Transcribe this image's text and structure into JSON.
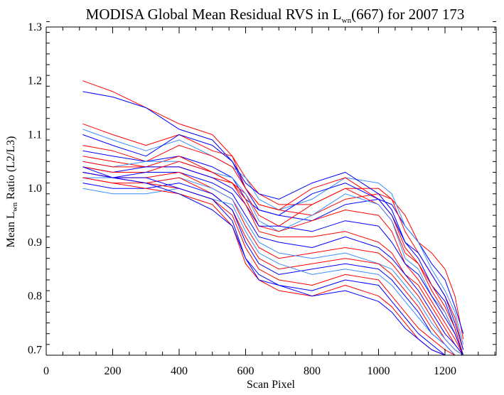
{
  "chart_data": {
    "type": "line",
    "title": {
      "prefix": "MODISA Global Mean Residual RVS in L",
      "subscript": "wn",
      "suffix": "(667) for 2007 173"
    },
    "xlabel": "Scan Pixel",
    "ylabel": {
      "prefix": "Mean L",
      "subscript": "wn",
      "suffix": " Ratio (L2/L3)"
    },
    "xlim": [
      0,
      1354
    ],
    "ylim": [
      0.69,
      1.3
    ],
    "xticks": [
      0,
      200,
      400,
      600,
      800,
      1000,
      1200
    ],
    "yticks": [
      0.7,
      0.8,
      0.9,
      1.0,
      1.1,
      1.2,
      1.3
    ],
    "x_minor_step": 50,
    "y_minor_step": 0.02,
    "grid": false,
    "legend": "none",
    "colors": {
      "red": "#ff0000",
      "blue": "#0000ff",
      "lightblue": "#3a8fff"
    },
    "x": [
      110,
      200,
      300,
      400,
      500,
      560,
      600,
      640,
      700,
      800,
      900,
      1000,
      1040,
      1080,
      1120,
      1160,
      1200,
      1230,
      1255
    ],
    "series": [
      {
        "color": "red",
        "values": [
          1.2,
          1.18,
          1.15,
          1.12,
          1.1,
          1.06,
          1.0,
          0.97,
          0.96,
          0.95,
          0.98,
          0.99,
          0.98,
          0.95,
          0.9,
          0.88,
          0.85,
          0.8,
          0.72
        ]
      },
      {
        "color": "blue",
        "values": [
          1.18,
          1.17,
          1.15,
          1.11,
          1.09,
          1.05,
          1.0,
          0.96,
          0.95,
          0.94,
          0.97,
          0.98,
          0.97,
          0.93,
          0.9,
          0.86,
          0.83,
          0.78,
          0.73
        ]
      },
      {
        "color": "red",
        "values": [
          1.12,
          1.1,
          1.08,
          1.1,
          1.07,
          1.06,
          1.02,
          0.99,
          0.97,
          0.97,
          1.0,
          1.0,
          0.98,
          0.92,
          0.88,
          0.84,
          0.8,
          0.76,
          0.7
        ]
      },
      {
        "color": "lightblue",
        "values": [
          1.11,
          1.09,
          1.07,
          1.09,
          1.06,
          1.04,
          1.02,
          0.98,
          0.96,
          0.98,
          1.02,
          1.01,
          0.99,
          0.93,
          0.9,
          0.85,
          0.81,
          0.77,
          0.71
        ]
      },
      {
        "color": "blue",
        "values": [
          1.1,
          1.08,
          1.06,
          1.1,
          1.08,
          1.05,
          1.01,
          0.99,
          0.98,
          1.01,
          1.03,
          0.99,
          0.96,
          0.9,
          0.87,
          0.82,
          0.79,
          0.74,
          0.69
        ]
      },
      {
        "color": "red",
        "values": [
          1.08,
          1.07,
          1.05,
          1.08,
          1.06,
          1.04,
          1.0,
          0.97,
          0.96,
          1.0,
          1.02,
          0.98,
          0.95,
          0.89,
          0.86,
          0.81,
          0.77,
          0.73,
          0.69
        ]
      },
      {
        "color": "blue",
        "values": [
          1.07,
          1.06,
          1.05,
          1.06,
          1.04,
          1.02,
          0.98,
          0.96,
          0.95,
          0.99,
          1.01,
          0.98,
          0.95,
          0.9,
          0.88,
          0.84,
          0.8,
          0.75,
          0.7
        ]
      },
      {
        "color": "red",
        "values": [
          1.06,
          1.05,
          1.04,
          1.06,
          1.03,
          1.01,
          0.99,
          0.95,
          0.93,
          0.97,
          1.0,
          0.97,
          0.94,
          0.88,
          0.86,
          0.82,
          0.78,
          0.74,
          0.69
        ]
      },
      {
        "color": "lightblue",
        "values": [
          1.05,
          1.04,
          1.05,
          1.05,
          1.03,
          1.02,
          0.99,
          0.94,
          0.92,
          0.95,
          0.99,
          0.97,
          0.94,
          0.87,
          0.85,
          0.8,
          0.77,
          0.73,
          0.69
        ]
      },
      {
        "color": "red",
        "values": [
          1.05,
          1.04,
          1.04,
          1.04,
          1.02,
          1.01,
          0.98,
          0.93,
          0.92,
          0.94,
          0.96,
          0.95,
          0.92,
          0.86,
          0.83,
          0.79,
          0.75,
          0.72,
          0.69
        ]
      },
      {
        "color": "blue",
        "values": [
          1.04,
          1.03,
          1.04,
          1.04,
          1.02,
          1.0,
          0.97,
          0.93,
          0.93,
          0.92,
          0.94,
          0.93,
          0.9,
          0.86,
          0.84,
          0.8,
          0.76,
          0.73,
          0.69
        ]
      },
      {
        "color": "red",
        "values": [
          1.04,
          1.03,
          1.03,
          1.05,
          1.03,
          1.01,
          0.97,
          0.92,
          0.91,
          0.91,
          0.92,
          0.9,
          0.88,
          0.84,
          0.82,
          0.78,
          0.74,
          0.71,
          0.69
        ]
      },
      {
        "color": "blue",
        "values": [
          1.03,
          1.02,
          1.03,
          1.03,
          1.01,
          0.99,
          0.95,
          0.91,
          0.9,
          0.89,
          0.91,
          0.89,
          0.87,
          0.84,
          0.81,
          0.77,
          0.73,
          0.71,
          0.69
        ]
      },
      {
        "color": "red",
        "values": [
          1.03,
          1.02,
          1.02,
          1.03,
          1.0,
          0.98,
          0.93,
          0.89,
          0.87,
          0.88,
          0.89,
          0.88,
          0.86,
          0.83,
          0.8,
          0.76,
          0.72,
          0.7,
          0.69
        ]
      },
      {
        "color": "lightblue",
        "values": [
          1.02,
          1.02,
          1.01,
          1.02,
          1.0,
          0.98,
          0.94,
          0.9,
          0.88,
          0.87,
          0.88,
          0.86,
          0.85,
          0.82,
          0.79,
          0.75,
          0.72,
          0.7,
          0.69
        ]
      },
      {
        "color": "red",
        "values": [
          1.02,
          1.01,
          1.01,
          1.02,
          0.99,
          0.96,
          0.91,
          0.87,
          0.85,
          0.86,
          0.87,
          0.86,
          0.84,
          0.81,
          0.78,
          0.74,
          0.71,
          0.69,
          0.69
        ]
      },
      {
        "color": "blue",
        "values": [
          1.01,
          1.0,
          1.0,
          1.01,
          0.99,
          0.96,
          0.9,
          0.86,
          0.84,
          0.85,
          0.86,
          0.85,
          0.83,
          0.8,
          0.77,
          0.73,
          0.71,
          0.69,
          0.69
        ]
      },
      {
        "color": "lightblue",
        "values": [
          1.0,
          0.99,
          0.99,
          1.0,
          0.98,
          0.97,
          0.92,
          0.88,
          0.86,
          0.84,
          0.85,
          0.84,
          0.82,
          0.79,
          0.76,
          0.73,
          0.71,
          0.69,
          0.69
        ]
      },
      {
        "color": "red",
        "values": [
          1.03,
          1.02,
          1.01,
          1.0,
          0.98,
          0.95,
          0.89,
          0.85,
          0.83,
          0.82,
          0.84,
          0.83,
          0.8,
          0.77,
          0.74,
          0.72,
          0.7,
          0.69,
          0.69
        ]
      },
      {
        "color": "blue",
        "values": [
          1.04,
          1.02,
          1.02,
          1.0,
          0.98,
          0.94,
          0.87,
          0.84,
          0.82,
          0.81,
          0.83,
          0.82,
          0.79,
          0.76,
          0.73,
          0.71,
          0.69,
          0.69,
          0.69
        ]
      },
      {
        "color": "red",
        "values": [
          1.02,
          1.01,
          1.0,
          0.99,
          0.97,
          0.93,
          0.86,
          0.83,
          0.81,
          0.8,
          0.82,
          0.8,
          0.78,
          0.75,
          0.72,
          0.7,
          0.69,
          0.69,
          0.69
        ]
      },
      {
        "color": "blue",
        "values": [
          1.03,
          1.02,
          1.01,
          0.99,
          0.96,
          0.93,
          0.87,
          0.83,
          0.82,
          0.8,
          0.81,
          0.79,
          0.77,
          0.74,
          0.72,
          0.7,
          0.69,
          0.69,
          0.69
        ]
      }
    ]
  }
}
